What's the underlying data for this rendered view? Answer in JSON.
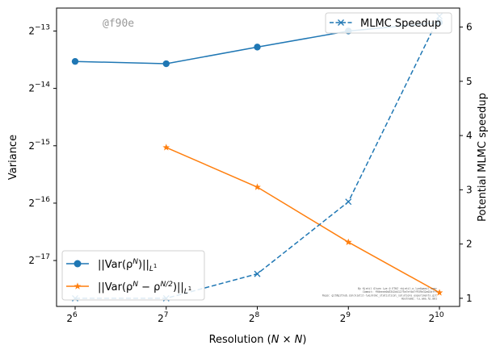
{
  "chart_data": {
    "type": "line",
    "xlabel": "Resolution (N × N)",
    "ylabel_left": "Variance",
    "ylabel_right": "Potential MLMC speedup",
    "x_scale": "log2",
    "x": [
      64,
      128,
      256,
      512,
      1024
    ],
    "x_tick_labels": [
      {
        "base": "2",
        "exp": "6"
      },
      {
        "base": "2",
        "exp": "7"
      },
      {
        "base": "2",
        "exp": "8"
      },
      {
        "base": "2",
        "exp": "9"
      },
      {
        "base": "2",
        "exp": "10"
      }
    ],
    "left_axis": {
      "scale": "log2",
      "ylim_log2": [
        -17.8,
        -12.6
      ],
      "tick_labels": [
        {
          "base": "2",
          "exp": "−13",
          "log2": -13
        },
        {
          "base": "2",
          "exp": "−14",
          "log2": -14
        },
        {
          "base": "2",
          "exp": "−15",
          "log2": -15
        },
        {
          "base": "2",
          "exp": "−16",
          "log2": -16
        },
        {
          "base": "2",
          "exp": "−17",
          "log2": -17
        }
      ]
    },
    "right_axis": {
      "scale": "linear",
      "ylim": [
        0.85,
        6.35
      ],
      "ticks": [
        1,
        2,
        3,
        4,
        5,
        6
      ]
    },
    "series": [
      {
        "axis": "left",
        "x": [
          64,
          128,
          256,
          512,
          1024
        ],
        "y_log2": [
          -13.53,
          -13.57,
          -13.28,
          -13.0,
          -12.85
        ],
        "color": "#1f77b4",
        "marker": "circle",
        "dash": "solid"
      },
      {
        "axis": "left",
        "x": [
          128,
          256,
          512,
          1024
        ],
        "y_log2": [
          -15.03,
          -15.72,
          -16.68,
          -17.56
        ],
        "color": "#ff7f0e",
        "marker": "star",
        "dash": "solid"
      },
      {
        "axis": "right",
        "x": [
          64,
          128,
          256,
          512,
          1024
        ],
        "y": [
          1.0,
          1.0,
          1.45,
          2.78,
          6.2
        ],
        "color": "#1f77b4",
        "marker": "x",
        "dash": "dashed"
      }
    ],
    "legend_upper": {
      "placement": "top-right",
      "label": "MLMC Speedup"
    },
    "legend_lower": {
      "placement": "bottom-left",
      "entries": [
        {
          "pre": "||Var(ρ",
          "sup": "N",
          "post": ")||",
          "sub": "L",
          "subsup": "1"
        },
        {
          "pre": "||Var(ρ",
          "sup": "N",
          "mid": " − ρ",
          "sup2": "N/2",
          "post": ")||",
          "sub": "L",
          "subsup": "1"
        }
      ]
    },
    "grid": false
  },
  "watermark": "@f90e",
  "credits": [
    "By Kjetil Olsen Lye @ ETHZ <kjetil.o.lye@gmail.com>",
    "Commit: f90eeee0b3342d41275e7ef4d7f939e32a02dfff",
    "Repo: git@github.com:kjetil-lye/mlmc_statistical_solutions_experiments.git",
    "Hostname: lu.ama.fp.001"
  ]
}
